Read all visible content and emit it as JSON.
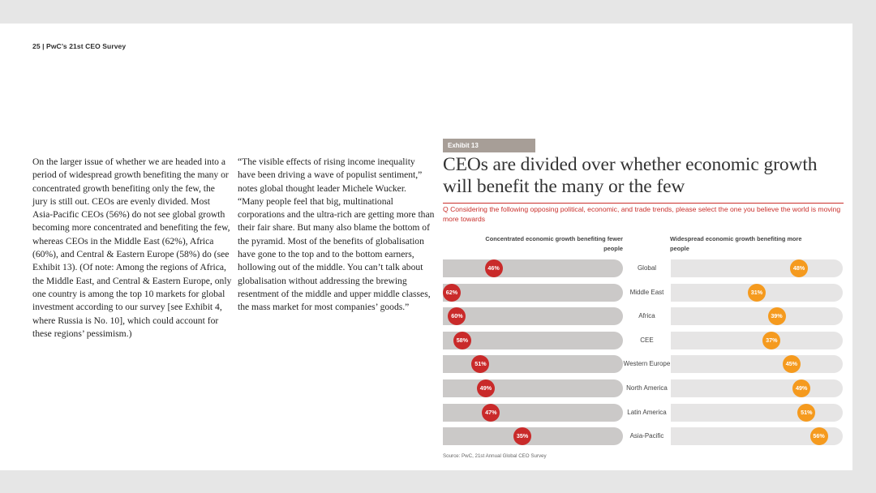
{
  "header": "25  |  PwC’s 21st CEO Survey",
  "body": {
    "col1": "On the larger issue of whether we are headed into a period of widespread growth benefiting the many or concentrated growth benefiting only the few, the jury is still out. CEOs are evenly divided. Most Asia-Pacific CEOs (56%) do not see global growth becoming more concentrated and benefiting the few, whereas CEOs in the Middle East (62%), Africa (60%), and Central & Eastern Europe (58%) do (see Exhibit 13). (Of note: Among the regions of Africa, the Middle East, and Central & Eastern Europe, only one country is among the top 10 markets for global investment according to our survey [see Exhibit 4, where Russia is No. 10], which could account for these regions’ pessimism.)",
    "col2": "“The visible effects of rising income inequality have been driving a wave of populist sentiment,” notes global thought leader Michele Wucker. “Many people feel that big, multinational corporations and the ultra-rich are getting more than their fair share. But many also blame the bottom of the pyramid. Most of the benefits of globalisation have gone to the top and to the bottom earners, hollowing out of the middle. You can’t talk about globalisation without addressing the brewing resentment of the middle and upper middle classes, the mass market for most companies’ goods.”"
  },
  "exhibit": {
    "label": "Exhibit 13",
    "title": "CEOs are divided over whether economic growth will benefit the many or the few",
    "question": "Q Considering the following opposing political, economic, and trade trends, please select the one you believe the world is moving more towards",
    "source": "Source: PwC, 21st Annual Global CEO Survey"
  },
  "colors": {
    "concentrated": "#c92a2a",
    "widespread": "#f59a1e",
    "exhibit_label_bg": "#a79e97"
  },
  "chart_data": {
    "type": "bar",
    "title": "CEOs are divided over whether economic growth will benefit the many or the few",
    "categories": [
      "Global",
      "Middle East",
      "Africa",
      "CEE",
      "Western Europe",
      "North America",
      "Latin America",
      "Asia-Pacific"
    ],
    "series": [
      {
        "name": "Concentrated economic growth benefiting fewer people",
        "values": [
          46,
          62,
          60,
          58,
          51,
          49,
          47,
          35
        ]
      },
      {
        "name": "Widespread economic growth benefiting more people",
        "values": [
          48,
          31,
          39,
          37,
          45,
          49,
          51,
          56
        ]
      }
    ],
    "value_labels": {
      "concentrated": [
        "46%",
        "62%",
        "60%",
        "58%",
        "51%",
        "49%",
        "47%",
        "35%"
      ],
      "widespread": [
        "48%",
        "31%",
        "39%",
        "37%",
        "45%",
        "49%",
        "51%",
        "56%"
      ]
    },
    "ylim": [
      0,
      62
    ],
    "legend": "top"
  }
}
